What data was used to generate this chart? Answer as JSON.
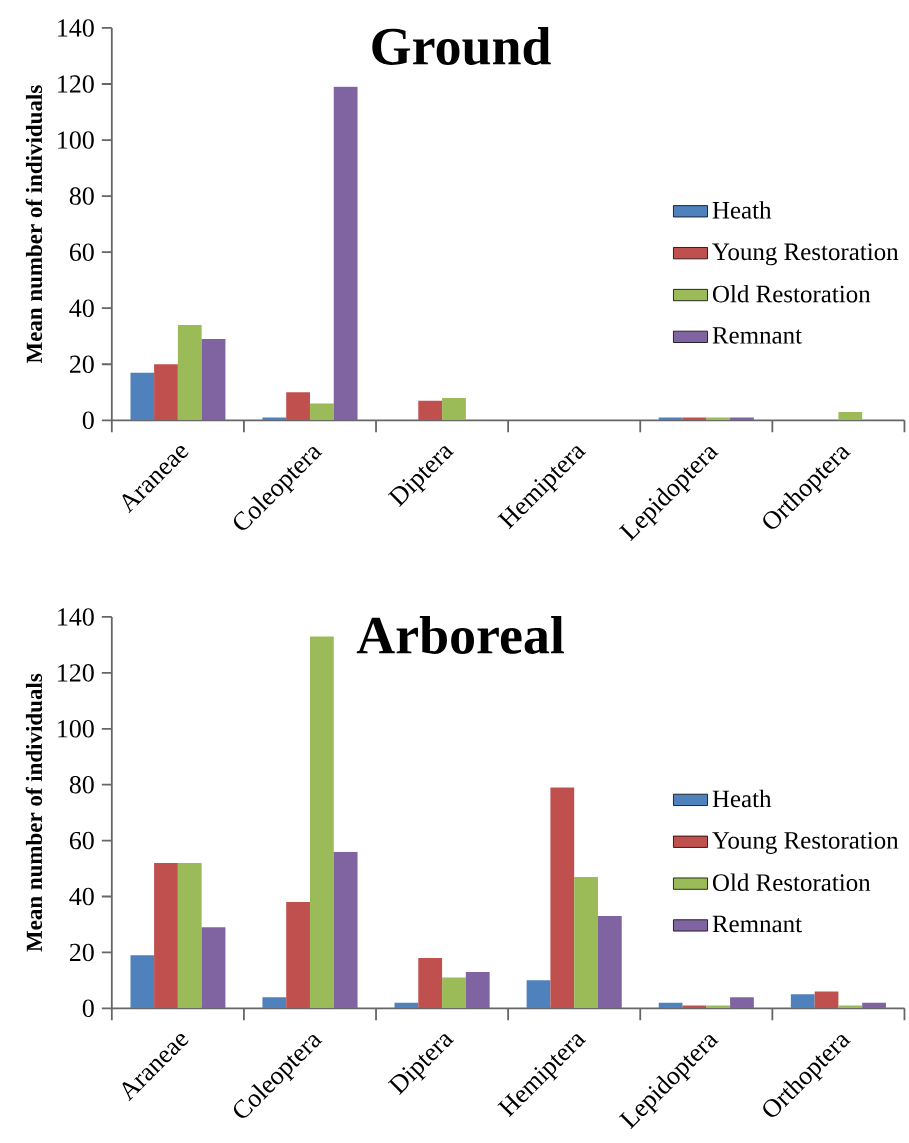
{
  "chart_data": [
    {
      "type": "bar",
      "title": "Ground",
      "ylabel": "Mean number of individuals",
      "categories": [
        "Araneae",
        "Coleoptera",
        "Diptera",
        "Hemiptera",
        "Lepidoptera",
        "Orthoptera"
      ],
      "series": [
        {
          "name": "Heath",
          "color": "#4f81bd",
          "values": [
            17,
            1,
            0,
            0,
            1,
            0
          ]
        },
        {
          "name": "Young Restoration",
          "color": "#c0504d",
          "values": [
            20,
            10,
            7,
            0,
            1,
            0
          ]
        },
        {
          "name": "Old Restoration",
          "color": "#9bbb59",
          "values": [
            34,
            6,
            8,
            0,
            1,
            3
          ]
        },
        {
          "name": "Remnant",
          "color": "#8064a2",
          "values": [
            29,
            119,
            0,
            0,
            1,
            0
          ]
        }
      ],
      "ylim": [
        0,
        140
      ],
      "yticks": [
        0,
        20,
        40,
        60,
        80,
        100,
        120,
        140
      ],
      "legend": "right"
    },
    {
      "type": "bar",
      "title": "Arboreal",
      "ylabel": "Mean number of individuals",
      "categories": [
        "Araneae",
        "Coleoptera",
        "Diptera",
        "Hemiptera",
        "Lepidoptera",
        "Orthoptera"
      ],
      "series": [
        {
          "name": "Heath",
          "color": "#4f81bd",
          "values": [
            19,
            4,
            2,
            10,
            2,
            5
          ]
        },
        {
          "name": "Young Restoration",
          "color": "#c0504d",
          "values": [
            52,
            38,
            18,
            79,
            1,
            6
          ]
        },
        {
          "name": "Old Restoration",
          "color": "#9bbb59",
          "values": [
            52,
            133,
            11,
            47,
            1,
            1
          ]
        },
        {
          "name": "Remnant",
          "color": "#8064a2",
          "values": [
            29,
            56,
            13,
            33,
            4,
            2
          ]
        }
      ],
      "ylim": [
        0,
        140
      ],
      "yticks": [
        0,
        20,
        40,
        60,
        80,
        100,
        120,
        140
      ],
      "legend": "right"
    }
  ]
}
